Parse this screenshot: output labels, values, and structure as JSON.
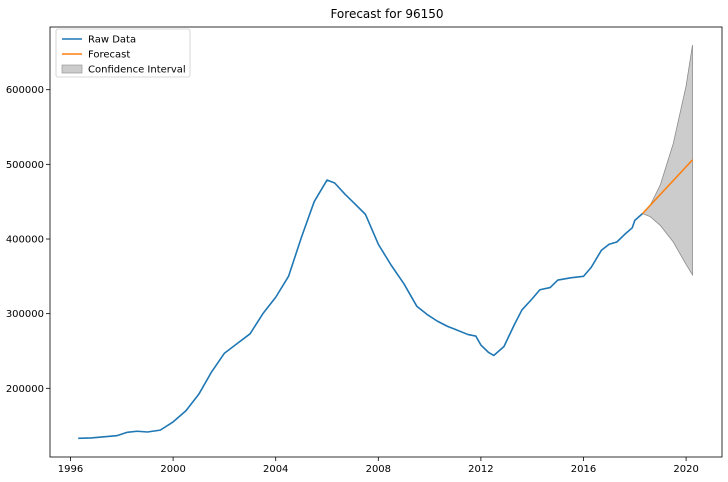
{
  "chart_data": {
    "type": "line",
    "title": "Forecast for 96150",
    "xlabel": "",
    "ylabel": "",
    "xlim": [
      1995.2,
      2021.4
    ],
    "ylim": [
      108000,
      684000
    ],
    "x_ticks": [
      1996,
      2000,
      2004,
      2008,
      2012,
      2016,
      2020
    ],
    "y_ticks": [
      200000,
      300000,
      400000,
      500000,
      600000
    ],
    "grid": false,
    "legend_position": "top-left",
    "colors": {
      "raw": "#1f77b4",
      "forecast": "#ff7f0e",
      "ci_fill": "#cccccc",
      "ci_edge": "#8c8c8c"
    },
    "series": [
      {
        "name": "Raw Data",
        "type": "line",
        "x": [
          1996.3,
          1996.8,
          1997.3,
          1997.8,
          1998.2,
          1998.6,
          1999.0,
          1999.5,
          2000.0,
          2000.5,
          2001.0,
          2001.5,
          2002.0,
          2002.5,
          2003.0,
          2003.5,
          2004.0,
          2004.5,
          2005.0,
          2005.5,
          2006.0,
          2006.3,
          2006.7,
          2007.0,
          2007.5,
          2008.0,
          2008.5,
          2009.0,
          2009.5,
          2009.9,
          2010.3,
          2010.7,
          2011.0,
          2011.5,
          2011.8,
          2012.0,
          2012.3,
          2012.5,
          2012.9,
          2013.3,
          2013.6,
          2014.0,
          2014.3,
          2014.7,
          2015.0,
          2015.5,
          2016.0,
          2016.3,
          2016.7,
          2017.0,
          2017.3,
          2017.6,
          2017.9,
          2018.0,
          2018.3
        ],
        "y": [
          133000,
          133500,
          135000,
          136500,
          141000,
          142500,
          141500,
          144000,
          155000,
          170000,
          192000,
          222000,
          247000,
          260000,
          273000,
          300000,
          322000,
          350000,
          402000,
          450000,
          479000,
          475000,
          460000,
          450000,
          433000,
          393000,
          365000,
          340000,
          310000,
          299000,
          290000,
          283000,
          279000,
          272000,
          270000,
          258000,
          248000,
          244000,
          256000,
          285000,
          305000,
          320000,
          332000,
          335000,
          345000,
          348000,
          350000,
          362000,
          385000,
          393000,
          396000,
          406000,
          415000,
          425000,
          434000
        ]
      },
      {
        "name": "Forecast",
        "type": "line",
        "x": [
          2018.3,
          2020.25
        ],
        "y": [
          434000,
          506000
        ]
      },
      {
        "name": "Confidence Interval",
        "type": "area",
        "x": [
          2018.3,
          2018.6,
          2019.0,
          2019.5,
          2020.0,
          2020.25
        ],
        "upper": [
          434000,
          445000,
          473000,
          528000,
          605000,
          660000
        ],
        "lower": [
          434000,
          430000,
          418000,
          396000,
          366000,
          352000
        ]
      }
    ]
  }
}
